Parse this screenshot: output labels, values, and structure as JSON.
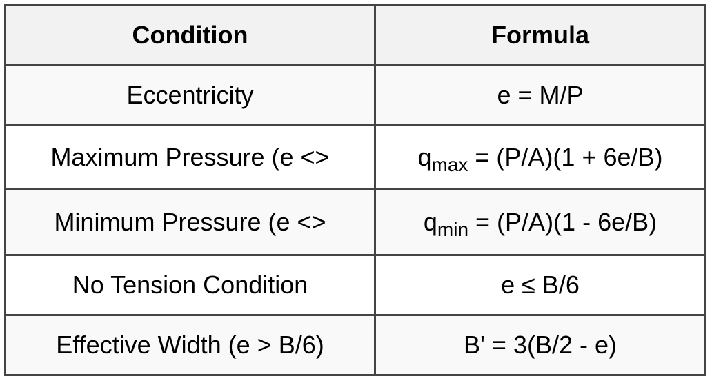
{
  "table": {
    "headers": [
      "Condition",
      "Formula"
    ],
    "rows": [
      {
        "condition": "Eccentricity",
        "formula": "e = M/P"
      },
      {
        "condition": "Maximum Pressure (e <>",
        "formula_base": "q",
        "formula_sub": "max",
        "formula_rest": " = (P/A)(1 + 6e/B)"
      },
      {
        "condition": "Minimum Pressure (e <>",
        "formula_base": "q",
        "formula_sub": "min",
        "formula_rest": " = (P/A)(1 - 6e/B)"
      },
      {
        "condition": "No Tension Condition",
        "formula": "e ≤ B/6"
      },
      {
        "condition": "Effective Width (e > B/6)",
        "formula": "B' = 3(B/2 - e)"
      }
    ]
  },
  "colors": {
    "border": "#444444",
    "header_bg": "#f2f2f2",
    "odd_row_bg": "#f9f9f9",
    "even_row_bg": "#ffffff"
  }
}
